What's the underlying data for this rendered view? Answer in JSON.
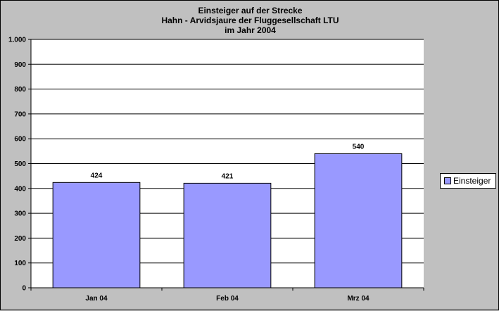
{
  "chart_data": {
    "type": "bar",
    "title": [
      "Einsteiger auf der Strecke",
      "Hahn - Arvidsjaure der Fluggesellschaft LTU",
      "im Jahr 2004"
    ],
    "categories": [
      "Jan 04",
      "Feb 04",
      "Mrz 04"
    ],
    "series": [
      {
        "name": "Einsteiger",
        "values": [
          424,
          421,
          540
        ],
        "color": "#9999ff"
      }
    ],
    "data_labels": [
      "424",
      "421",
      "540"
    ],
    "ylim": [
      0,
      1000
    ],
    "yticks": [
      0,
      100,
      200,
      300,
      400,
      500,
      600,
      700,
      800,
      900,
      1000
    ],
    "ytick_labels": [
      "0",
      "100",
      "200",
      "300",
      "400",
      "500",
      "600",
      "700",
      "800",
      "900",
      "1.000"
    ],
    "grid": true,
    "legend": "right",
    "plot_background": "#ffffff",
    "chart_background": "#c0c0c0"
  }
}
